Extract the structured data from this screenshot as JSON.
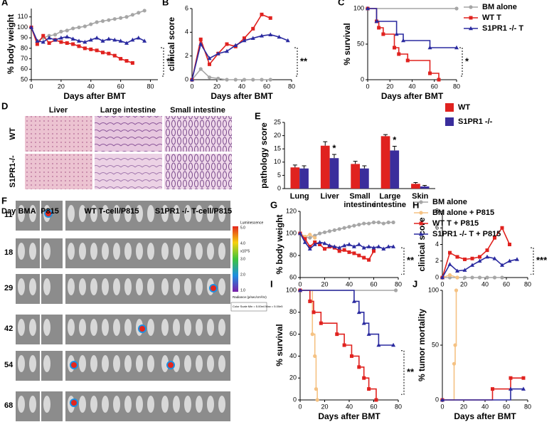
{
  "chart_data": [
    {
      "panel": "A",
      "type": "line",
      "xlabel": "Days after BMT",
      "ylabel": "% body weight",
      "xlim": [
        0,
        85
      ],
      "ylim": [
        50,
        118
      ],
      "xticks": [
        0,
        20,
        40,
        60,
        80
      ],
      "yticks": [
        50,
        60,
        70,
        80,
        90,
        100,
        110
      ],
      "significance": "**",
      "series": [
        {
          "name": "BM alone",
          "color": "#a6a6a6",
          "marker": "circle",
          "x": [
            0,
            4,
            8,
            12,
            16,
            20,
            24,
            28,
            32,
            36,
            40,
            44,
            48,
            52,
            56,
            60,
            64,
            68,
            72,
            76
          ],
          "values": [
            100,
            87,
            90,
            92,
            93,
            96,
            97,
            99,
            100,
            101,
            103,
            105,
            106,
            107,
            108,
            109,
            110,
            112,
            114,
            116
          ]
        },
        {
          "name": "WT T",
          "color": "#e0221f",
          "marker": "square",
          "x": [
            0,
            4,
            8,
            12,
            16,
            20,
            24,
            28,
            32,
            36,
            40,
            44,
            48,
            52,
            56,
            60,
            64,
            68
          ],
          "values": [
            100,
            84,
            92,
            85,
            88,
            86,
            85,
            84,
            82,
            80,
            79,
            78,
            76,
            75,
            73,
            70,
            68,
            66
          ]
        },
        {
          "name": "S1PR1 -/- T",
          "color": "#2b2ba0",
          "marker": "triangle",
          "x": [
            0,
            4,
            8,
            12,
            16,
            20,
            24,
            28,
            32,
            36,
            40,
            44,
            48,
            52,
            56,
            60,
            64,
            68,
            72,
            76
          ],
          "values": [
            100,
            87,
            86,
            90,
            88,
            90,
            91,
            89,
            87,
            86,
            88,
            90,
            87,
            89,
            88,
            87,
            85,
            88,
            90,
            87
          ]
        }
      ]
    },
    {
      "panel": "B",
      "type": "line",
      "xlabel": "Days after BMT",
      "ylabel": "clinical score",
      "xlim": [
        0,
        80
      ],
      "ylim": [
        0,
        6
      ],
      "xticks": [
        0,
        20,
        40,
        60,
        80
      ],
      "yticks": [
        0,
        2,
        4,
        6
      ],
      "significance": "**",
      "series": [
        {
          "name": "BM alone",
          "color": "#a6a6a6",
          "marker": "circle",
          "x": [
            0,
            7,
            14,
            21,
            28,
            35,
            42,
            49,
            56,
            63
          ],
          "values": [
            0,
            0.9,
            0.2,
            0.1,
            0,
            0,
            0,
            0,
            0,
            0
          ]
        },
        {
          "name": "WT T",
          "color": "#e0221f",
          "marker": "square",
          "x": [
            0,
            7,
            14,
            21,
            28,
            35,
            42,
            49,
            56,
            63
          ],
          "values": [
            0,
            3.4,
            1.3,
            2.2,
            3.0,
            2.8,
            3.5,
            4.3,
            5.5,
            5.2
          ]
        },
        {
          "name": "S1PR1 -/- T",
          "color": "#2b2ba0",
          "marker": "triangle",
          "x": [
            0,
            7,
            14,
            21,
            28,
            35,
            42,
            49,
            56,
            63,
            70,
            77
          ],
          "values": [
            0,
            3.0,
            1.8,
            2.2,
            2.4,
            2.9,
            3.3,
            3.5,
            3.7,
            3.8,
            3.6,
            3.3
          ]
        }
      ]
    },
    {
      "panel": "C",
      "type": "line",
      "step": true,
      "xlabel": "Days after BMT",
      "ylabel": "% survival",
      "xlim": [
        0,
        80
      ],
      "ylim": [
        0,
        100
      ],
      "xticks": [
        0,
        20,
        40,
        60,
        80
      ],
      "yticks": [
        0,
        50,
        100
      ],
      "significance": "*",
      "series": [
        {
          "name": "BM alone",
          "color": "#a6a6a6",
          "marker": "circle",
          "x": [
            0,
            80
          ],
          "values": [
            100,
            100
          ]
        },
        {
          "name": "WT T",
          "color": "#e0221f",
          "marker": "square",
          "x": [
            0,
            8,
            10,
            14,
            24,
            28,
            36,
            56,
            64
          ],
          "values": [
            100,
            82,
            73,
            64,
            45,
            36,
            27,
            9,
            0
          ]
        },
        {
          "name": "S1PR1 -/- T",
          "color": "#2b2ba0",
          "marker": "triangle",
          "x": [
            0,
            8,
            26,
            32,
            56,
            80
          ],
          "values": [
            100,
            82,
            64,
            55,
            45,
            45
          ]
        }
      ]
    },
    {
      "panel": "E",
      "type": "bar",
      "ylabel": "pathology score",
      "ylim": [
        0,
        25
      ],
      "yticks": [
        0,
        5,
        10,
        15,
        20,
        25
      ],
      "categories": [
        "Lung",
        "Liver",
        "Small intestine",
        "Large intestine",
        "Skin"
      ],
      "significance": [
        null,
        "*",
        null,
        "*",
        null
      ],
      "series": [
        {
          "name": "WT",
          "color": "#e0221f",
          "values": [
            8.0,
            16.2,
            9.3,
            19.8,
            1.8
          ],
          "errors": [
            0.9,
            1.5,
            1.0,
            0.6,
            0.5
          ]
        },
        {
          "name": "S1PR1 -/-",
          "color": "#3a2d9c",
          "values": [
            7.6,
            11.5,
            7.6,
            14.4,
            0.8
          ],
          "errors": [
            1.0,
            1.4,
            1.0,
            1.6,
            0.4
          ]
        }
      ]
    },
    {
      "panel": "G",
      "type": "line",
      "ylabel": "% body weight",
      "xlim": [
        0,
        80
      ],
      "ylim": [
        60,
        120
      ],
      "xticks": [
        0,
        20,
        40,
        60,
        80
      ],
      "yticks": [
        60,
        80,
        100,
        120
      ],
      "significance": "**",
      "series": [
        {
          "name": "BM alone",
          "color": "#a6a6a6",
          "marker": "circle",
          "x": [
            0,
            4,
            8,
            12,
            16,
            20,
            24,
            28,
            32,
            36,
            40,
            44,
            48,
            52,
            56,
            60,
            64,
            68,
            72,
            76
          ],
          "values": [
            100,
            97,
            96,
            98,
            100,
            101,
            102,
            103,
            104,
            105,
            106,
            107,
            108,
            109,
            109,
            110,
            110,
            109,
            110,
            110
          ]
        },
        {
          "name": "BM alone + P815",
          "color": "#f5c283",
          "marker": "circle",
          "x": [
            0,
            4,
            8,
            12
          ],
          "values": [
            100,
            97,
            99,
            96
          ]
        },
        {
          "name": "WT T + P815",
          "color": "#e0221f",
          "marker": "square",
          "x": [
            0,
            4,
            8,
            12,
            16,
            20,
            24,
            28,
            32,
            36,
            40,
            44,
            48,
            52,
            56,
            60
          ],
          "values": [
            100,
            95,
            88,
            92,
            90,
            86,
            88,
            87,
            84,
            85,
            83,
            82,
            80,
            78,
            76,
            84
          ]
        },
        {
          "name": "S1PR1 -/- T + P815",
          "color": "#2b2ba0",
          "marker": "triangle",
          "x": [
            0,
            4,
            8,
            12,
            16,
            20,
            24,
            28,
            32,
            36,
            40,
            44,
            48,
            52,
            56,
            60,
            64,
            68,
            72,
            76
          ],
          "values": [
            100,
            92,
            86,
            90,
            92,
            91,
            89,
            88,
            87,
            89,
            90,
            88,
            90,
            87,
            88,
            87,
            88,
            86,
            88,
            88
          ]
        }
      ]
    },
    {
      "panel": "H",
      "type": "line",
      "ylabel": "clinical score",
      "xlim": [
        0,
        80
      ],
      "ylim": [
        0,
        8
      ],
      "xticks": [
        0,
        20,
        40,
        60,
        80
      ],
      "yticks": [
        0,
        2,
        4,
        6,
        8
      ],
      "significance": "***",
      "series": [
        {
          "name": "BM alone",
          "color": "#a6a6a6",
          "marker": "circle",
          "x": [
            0,
            7,
            14,
            21,
            28,
            35,
            42,
            49,
            56
          ],
          "values": [
            0,
            0,
            0,
            0,
            0,
            0,
            0,
            0,
            0
          ]
        },
        {
          "name": "BM alone + P815",
          "color": "#f5c283",
          "marker": "circle",
          "x": [
            0,
            7,
            14
          ],
          "values": [
            0,
            0.3,
            0
          ]
        },
        {
          "name": "WT T + P815",
          "color": "#e0221f",
          "marker": "square",
          "x": [
            0,
            7,
            14,
            21,
            28,
            35,
            42,
            49,
            56,
            63
          ],
          "values": [
            0,
            3.0,
            2.5,
            2.2,
            2.3,
            2.5,
            3.3,
            4.8,
            6.0,
            4.0
          ]
        },
        {
          "name": "S1PR1 -/- T + P815",
          "color": "#2b2ba0",
          "marker": "triangle",
          "x": [
            0,
            7,
            14,
            21,
            28,
            35,
            42,
            49,
            56,
            63,
            70
          ],
          "values": [
            0,
            1.6,
            0.8,
            0.9,
            1.5,
            2.0,
            2.5,
            2.3,
            1.5,
            2.0,
            2.2
          ]
        }
      ]
    },
    {
      "panel": "I",
      "type": "line",
      "step": true,
      "xlabel": "Days after BMT",
      "ylabel": "% survival",
      "xlim": [
        0,
        80
      ],
      "ylim": [
        0,
        100
      ],
      "xticks": [
        0,
        20,
        40,
        60,
        80
      ],
      "yticks": [
        0,
        20,
        40,
        60,
        80,
        100
      ],
      "significance": "**",
      "series": [
        {
          "name": "BM alone",
          "color": "#a6a6a6",
          "marker": "circle",
          "x": [
            0,
            78
          ],
          "values": [
            100,
            100
          ]
        },
        {
          "name": "BM alone + P815",
          "color": "#f5c283",
          "marker": "circle",
          "x": [
            0,
            10,
            12,
            13,
            14
          ],
          "values": [
            100,
            60,
            40,
            10,
            0
          ]
        },
        {
          "name": "WT T + P815",
          "color": "#e0221f",
          "marker": "square",
          "x": [
            0,
            8,
            11,
            17,
            30,
            36,
            42,
            48,
            52,
            56,
            62
          ],
          "values": [
            100,
            90,
            80,
            70,
            60,
            50,
            40,
            30,
            20,
            10,
            0
          ]
        },
        {
          "name": "S1PR1 -/- T + P815",
          "color": "#2b2ba0",
          "marker": "triangle",
          "x": [
            0,
            44,
            48,
            52,
            56,
            64,
            76
          ],
          "values": [
            100,
            90,
            80,
            70,
            60,
            50,
            50
          ]
        }
      ]
    },
    {
      "panel": "J",
      "type": "line",
      "step": true,
      "xlabel": "Days after BMT",
      "ylabel": "% tumor mortality",
      "xlim": [
        0,
        80
      ],
      "ylim": [
        0,
        100
      ],
      "xticks": [
        0,
        20,
        40,
        60,
        80
      ],
      "yticks": [
        0,
        50,
        100
      ],
      "series": [
        {
          "name": "BM alone + P815",
          "color": "#f5c283",
          "marker": "circle",
          "x": [
            0,
            11,
            12,
            13
          ],
          "values": [
            0,
            33,
            50,
            100
          ]
        },
        {
          "name": "WT T + P815",
          "color": "#e0221f",
          "marker": "square",
          "x": [
            0,
            47,
            64,
            76
          ],
          "values": [
            0,
            10,
            20,
            20
          ]
        },
        {
          "name": "S1PR1 -/- T + P815",
          "color": "#2b2ba0",
          "marker": "triangle",
          "x": [
            0,
            64,
            76
          ],
          "values": [
            0,
            10,
            10
          ]
        }
      ]
    }
  ],
  "histology": {
    "panel": "D",
    "columns": [
      "Liver",
      "Large intestine",
      "Small intestine"
    ],
    "rows": [
      "WT",
      "S1PR1-/-"
    ]
  },
  "bioluminescence": {
    "panel": "F",
    "day_header": "Day",
    "days": [
      "11",
      "18",
      "29",
      "42",
      "54",
      "68"
    ],
    "groups": [
      "BMA",
      "P815",
      "WT T-cell/P815",
      "S1PR1 -/- T-cell/P815"
    ],
    "scale_title": "Luminescence",
    "scale_labels": [
      "5.0",
      "4.0",
      "3.0",
      "2.0",
      "1.0"
    ],
    "scale_unit": "x10^5",
    "radiance_label": "Radiance (p/sec/cm²/sr)",
    "color_scale": "Color Scale Min = 5.00e4 Max = 5.00e5"
  }
}
